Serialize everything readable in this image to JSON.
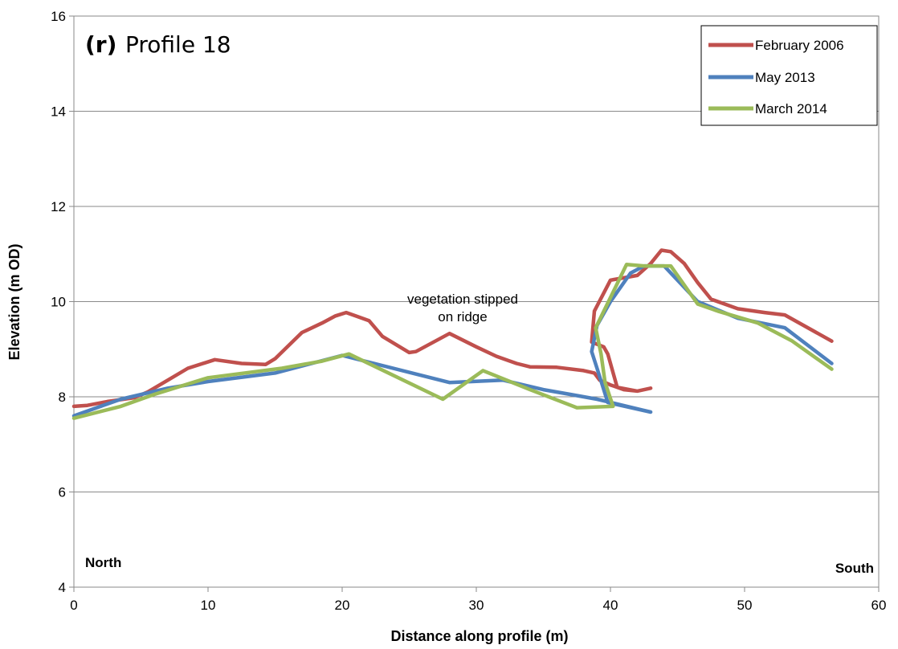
{
  "chart_data": {
    "type": "line",
    "panel_label": "(r)",
    "title": "Profile 18",
    "xlabel": "Distance along profile (m)",
    "ylabel": "Elevation (m OD)",
    "xlim": [
      0,
      60
    ],
    "ylim": [
      4,
      16
    ],
    "xticks": [
      0,
      10,
      20,
      30,
      40,
      50,
      60
    ],
    "yticks": [
      4,
      6,
      8,
      10,
      12,
      14,
      16
    ],
    "grid": "horizontal",
    "legend_position": "top-right",
    "annotations": [
      {
        "text": "vegetation stipped",
        "x": 31,
        "y": 10.0
      },
      {
        "text": "on ridge",
        "x": 31,
        "y": 9.6
      }
    ],
    "corner_labels": {
      "left": "North",
      "right": "South"
    },
    "series": [
      {
        "name": "February 2006",
        "color": "#c0504d",
        "points": [
          [
            0,
            7.8
          ],
          [
            1,
            7.82
          ],
          [
            2.5,
            7.9
          ],
          [
            4.5,
            7.98
          ],
          [
            5.5,
            8.1
          ],
          [
            7,
            8.35
          ],
          [
            8.5,
            8.6
          ],
          [
            10.5,
            8.78
          ],
          [
            12.5,
            8.7
          ],
          [
            14.3,
            8.68
          ],
          [
            15,
            8.8
          ],
          [
            17,
            9.35
          ],
          [
            18.5,
            9.55
          ],
          [
            19.5,
            9.7
          ],
          [
            20.3,
            9.77
          ],
          [
            21,
            9.7
          ],
          [
            22,
            9.6
          ],
          [
            23,
            9.27
          ],
          [
            25,
            8.93
          ],
          [
            25.5,
            8.95
          ],
          [
            28,
            9.33
          ],
          [
            30,
            9.05
          ],
          [
            31.5,
            8.85
          ],
          [
            33,
            8.7
          ],
          [
            34,
            8.63
          ],
          [
            36,
            8.62
          ],
          [
            38,
            8.55
          ],
          [
            38.8,
            8.5
          ],
          [
            39.2,
            8.35
          ],
          [
            40,
            8.25
          ],
          [
            41,
            8.15
          ],
          [
            42,
            8.12
          ],
          [
            43,
            8.18
          ],
          [
            42,
            8.12
          ],
          [
            40.5,
            8.2
          ],
          [
            39.8,
            8.9
          ],
          [
            39.5,
            9.05
          ],
          [
            38.6,
            9.15
          ],
          [
            38.8,
            9.8
          ],
          [
            40,
            10.45
          ],
          [
            41,
            10.5
          ],
          [
            42,
            10.55
          ],
          [
            43,
            10.8
          ],
          [
            43.8,
            11.08
          ],
          [
            44.5,
            11.05
          ],
          [
            45.5,
            10.8
          ],
          [
            46.5,
            10.4
          ],
          [
            47.5,
            10.05
          ],
          [
            49.5,
            9.85
          ],
          [
            51.5,
            9.77
          ],
          [
            53,
            9.72
          ],
          [
            56.5,
            9.17
          ]
        ]
      },
      {
        "name": "May 2013",
        "color": "#4f81bd",
        "points": [
          [
            0,
            7.6
          ],
          [
            3.5,
            7.95
          ],
          [
            7,
            8.18
          ],
          [
            10,
            8.32
          ],
          [
            15,
            8.5
          ],
          [
            20,
            8.87
          ],
          [
            28,
            8.3
          ],
          [
            32,
            8.35
          ],
          [
            35,
            8.15
          ],
          [
            37,
            8.05
          ],
          [
            39,
            7.95
          ],
          [
            43,
            7.68
          ],
          [
            39.8,
            7.88
          ],
          [
            39,
            8.6
          ],
          [
            38.6,
            8.95
          ],
          [
            39,
            9.5
          ],
          [
            40,
            10.0
          ],
          [
            41.5,
            10.6
          ],
          [
            42.5,
            10.75
          ],
          [
            44,
            10.75
          ],
          [
            46.5,
            10.0
          ],
          [
            49.5,
            9.65
          ],
          [
            53,
            9.45
          ],
          [
            56.5,
            8.7
          ]
        ]
      },
      {
        "name": "March 2014",
        "color": "#9bbb59",
        "points": [
          [
            0,
            7.55
          ],
          [
            3.5,
            7.8
          ],
          [
            6,
            8.05
          ],
          [
            10,
            8.4
          ],
          [
            15.5,
            8.6
          ],
          [
            18.5,
            8.75
          ],
          [
            20.5,
            8.9
          ],
          [
            27.5,
            7.95
          ],
          [
            30.5,
            8.55
          ],
          [
            34,
            8.15
          ],
          [
            37.5,
            7.77
          ],
          [
            40.2,
            7.8
          ],
          [
            39.6,
            8.3
          ],
          [
            39.3,
            8.9
          ],
          [
            38.9,
            9.45
          ],
          [
            40.2,
            10.2
          ],
          [
            41.2,
            10.78
          ],
          [
            42.5,
            10.75
          ],
          [
            44.5,
            10.75
          ],
          [
            46.5,
            9.95
          ],
          [
            48,
            9.8
          ],
          [
            51,
            9.55
          ],
          [
            53.5,
            9.18
          ],
          [
            56.5,
            8.58
          ]
        ]
      }
    ]
  }
}
